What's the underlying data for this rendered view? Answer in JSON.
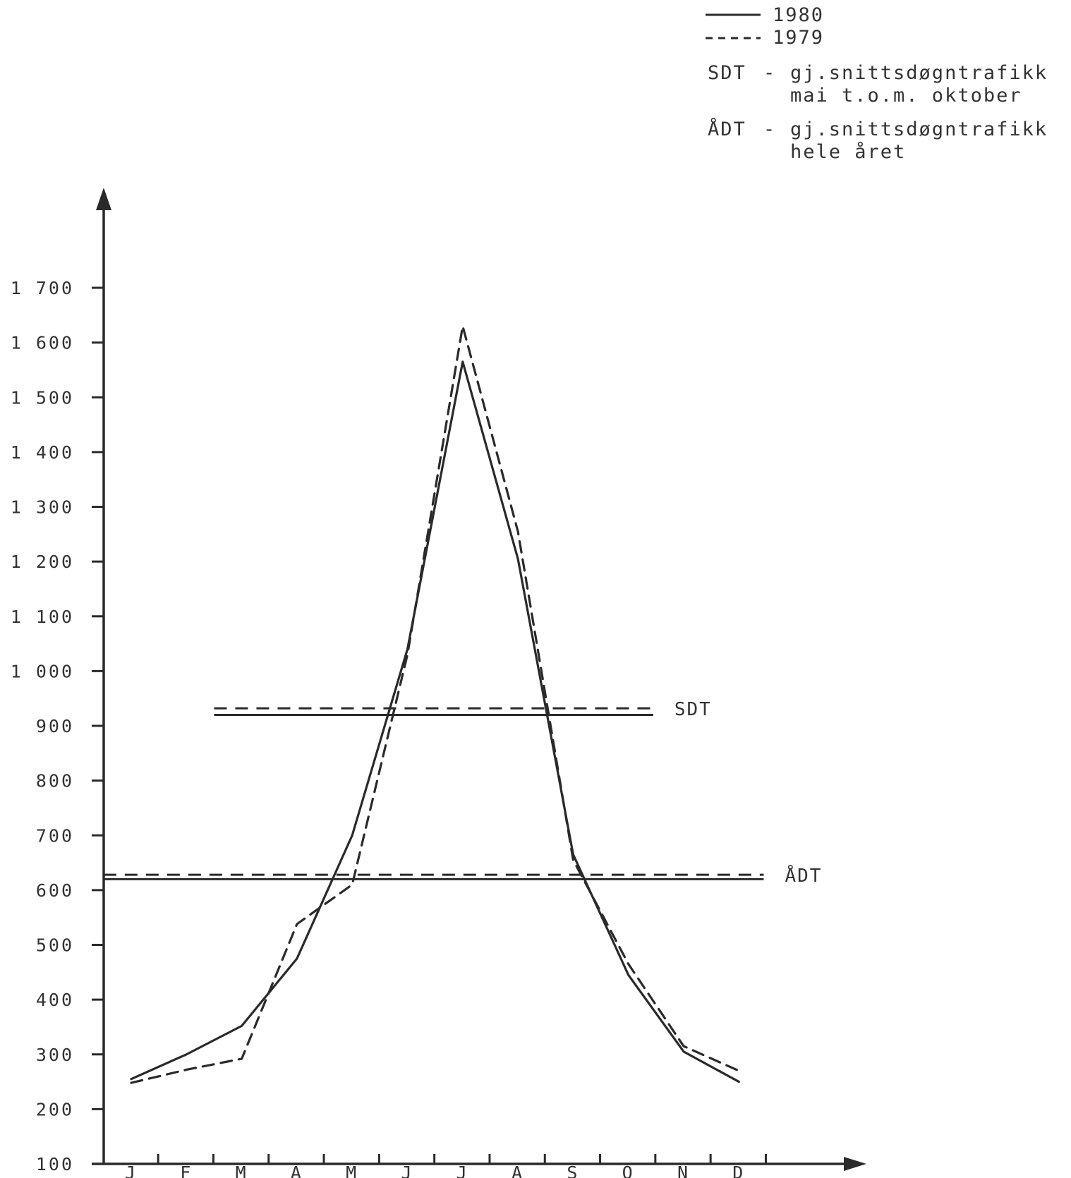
{
  "chart_data": {
    "type": "line",
    "title": "",
    "xlabel": "",
    "ylabel": "",
    "categories": [
      "J",
      "F",
      "M",
      "A",
      "M",
      "J",
      "J",
      "A",
      "S",
      "O",
      "N",
      "D"
    ],
    "y_ticks": [
      "1 700",
      "1 600",
      "1 500",
      "1 400",
      "1 300",
      "1 200",
      "1 100",
      "1 000",
      "900",
      "800",
      "700",
      "600",
      "500",
      "400",
      "300",
      "200",
      "100"
    ],
    "y_tick_values": [
      1700,
      1600,
      1500,
      1400,
      1300,
      1200,
      1100,
      1000,
      900,
      800,
      700,
      600,
      500,
      400,
      300,
      200,
      100
    ],
    "ylim": [
      100,
      1700
    ],
    "grid": false,
    "legend_position": "top-right",
    "series": [
      {
        "name": "1980",
        "style": "solid",
        "values": [
          255,
          300,
          352,
          475,
          700,
          1040,
          1565,
          1205,
          665,
          445,
          305,
          250
        ]
      },
      {
        "name": "1979",
        "style": "dashed",
        "values": [
          248,
          272,
          292,
          538,
          610,
          1030,
          1630,
          1255,
          655,
          465,
          315,
          270
        ]
      }
    ],
    "reference_lines": [
      {
        "label": "SDT",
        "lines": [
          {
            "series": "1980",
            "style": "solid",
            "value": 920,
            "from": "M",
            "to": "O"
          },
          {
            "series": "1979",
            "style": "dashed",
            "value": 932,
            "from": "M",
            "to": "O"
          }
        ]
      },
      {
        "label": "ÅDT",
        "lines": [
          {
            "series": "1980",
            "style": "solid",
            "value": 620,
            "from": "J",
            "to": "D"
          },
          {
            "series": "1979",
            "style": "dashed",
            "value": 628,
            "from": "J",
            "to": "D"
          }
        ]
      }
    ],
    "legend": {
      "series": [
        {
          "style": "solid",
          "label": "1980"
        },
        {
          "style": "dashed",
          "label": "1979"
        }
      ],
      "definitions": [
        {
          "abbr": "SDT",
          "dash": "-",
          "line1": "gj.snittsdøgntrafikk",
          "line2": "mai t.o.m. oktober"
        },
        {
          "abbr": "ÅDT",
          "dash": "-",
          "line1": "gj.snittsdøgntrafikk",
          "line2": "hele året"
        }
      ]
    }
  },
  "colors": {
    "ink": "#2a2a2a",
    "paper": "#ffffff"
  }
}
